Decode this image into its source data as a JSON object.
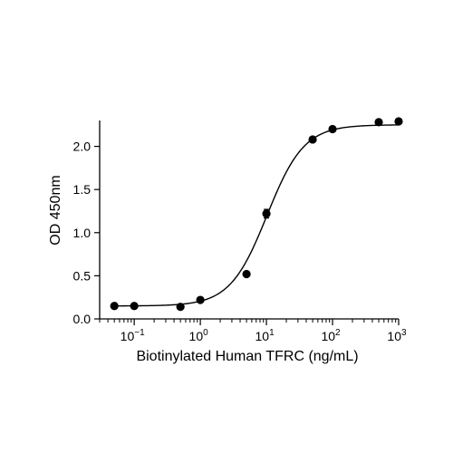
{
  "chart_data": {
    "type": "scatter",
    "title": "",
    "xlabel": "Biotinylated Human TFRC (ng/mL)",
    "ylabel": "OD 450nm",
    "xscale": "log10",
    "xlim": [
      0.03,
      1000
    ],
    "ylim": [
      0,
      2.3
    ],
    "grid": false,
    "legend": "none",
    "x_ticks": [
      {
        "value": 0.1,
        "base": "10",
        "exp": "−1"
      },
      {
        "value": 1,
        "base": "10",
        "exp": "0"
      },
      {
        "value": 10,
        "base": "10",
        "exp": "1"
      },
      {
        "value": 100,
        "base": "10",
        "exp": "2"
      },
      {
        "value": 1000,
        "base": "10",
        "exp": "3"
      }
    ],
    "y_ticks": [
      {
        "value": 0.0,
        "label": "0.0"
      },
      {
        "value": 0.5,
        "label": "0.5"
      },
      {
        "value": 1.0,
        "label": "1.0"
      },
      {
        "value": 1.5,
        "label": "1.5"
      },
      {
        "value": 2.0,
        "label": "2.0"
      }
    ],
    "series": [
      {
        "points": [
          {
            "x": 0.05,
            "y": 0.15
          },
          {
            "x": 0.1,
            "y": 0.15
          },
          {
            "x": 0.5,
            "y": 0.14
          },
          {
            "x": 1,
            "y": 0.22
          },
          {
            "x": 5,
            "y": 0.52
          },
          {
            "x": 10,
            "y": 1.22,
            "err": 0.05
          },
          {
            "x": 50,
            "y": 2.08
          },
          {
            "x": 100,
            "y": 2.2
          },
          {
            "x": 500,
            "y": 2.28
          },
          {
            "x": 1000,
            "y": 2.29
          }
        ],
        "fit": {
          "model": "4PL",
          "bottom": 0.15,
          "top": 2.25,
          "ec50": 10.2,
          "hill": 1.55
        }
      }
    ],
    "colors": {
      "points": "#000000",
      "fit_line": "#000000",
      "axes": "#000000"
    }
  }
}
